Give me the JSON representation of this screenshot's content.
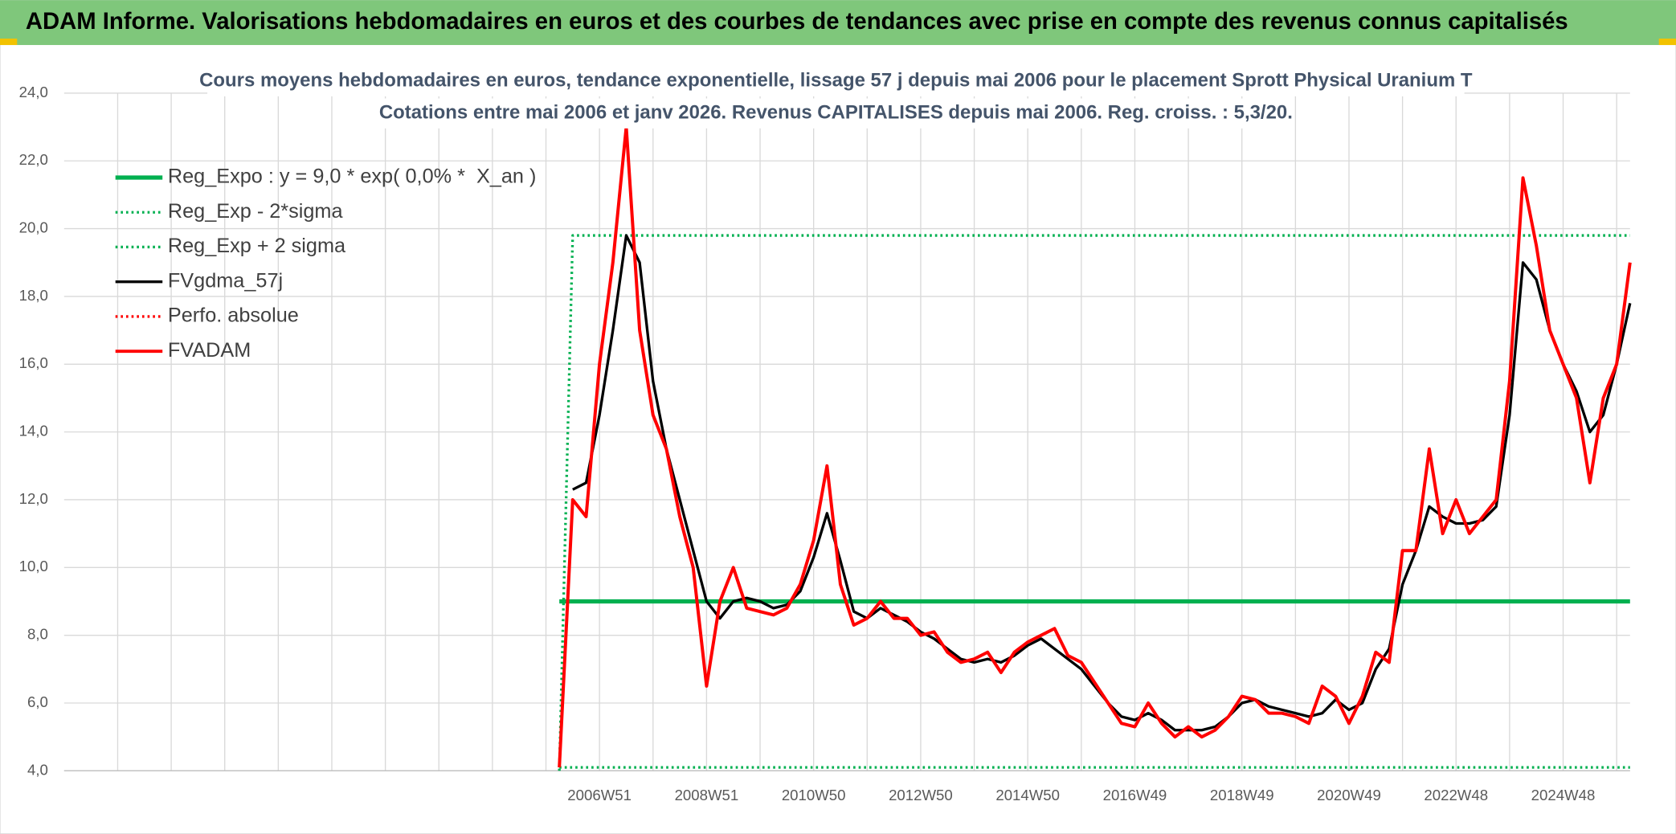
{
  "header": {
    "title": "ADAM Informe. Valorisations hebdomadaires en euros et des courbes de tendances avec prise en compte des revenus connus capitalisés"
  },
  "chart_data": {
    "type": "line",
    "title": "Cours moyens hebdomadaires en euros, tendance exponentielle, lissage 57 j depuis mai 2006 pour le placement Sprott Physical Uranium T",
    "subtitle": "Cotations entre mai 2006 et janv 2026. Revenus CAPITALISES depuis mai 2006. Reg. croiss. : 5,3/20.",
    "grid": true,
    "legend": "upper left",
    "ylim": [
      4,
      24
    ],
    "yticks": [
      {
        "value": 4,
        "label": "4,0"
      },
      {
        "value": 6,
        "label": "6,0"
      },
      {
        "value": 8,
        "label": "8,0"
      },
      {
        "value": 10,
        "label": "10,0"
      },
      {
        "value": 12,
        "label": "12,0"
      },
      {
        "value": 14,
        "label": "14,0"
      },
      {
        "value": 16,
        "label": "16,0"
      },
      {
        "value": 18,
        "label": "18,0"
      },
      {
        "value": 20,
        "label": "20,0"
      },
      {
        "value": 22,
        "label": "22,0"
      },
      {
        "value": 24,
        "label": "24,0"
      }
    ],
    "categories": [
      null,
      null,
      null,
      null,
      null,
      null,
      null,
      null,
      null,
      null,
      null,
      null,
      null,
      null,
      null,
      null,
      null,
      null,
      null,
      null,
      null,
      null,
      null,
      null,
      null,
      null,
      null,
      null,
      null,
      null,
      null,
      null,
      null,
      null,
      null,
      null,
      null,
      null,
      null,
      null,
      "2006W51",
      null,
      null,
      null,
      null,
      null,
      null,
      null,
      "2008W51",
      null,
      null,
      null,
      null,
      null,
      null,
      null,
      "2010W50",
      null,
      null,
      null,
      null,
      null,
      null,
      null,
      "2012W50",
      null,
      null,
      null,
      null,
      null,
      null,
      null,
      "2014W50",
      null,
      null,
      null,
      null,
      null,
      null,
      null,
      "2016W49",
      null,
      null,
      null,
      null,
      null,
      null,
      null,
      "2018W49",
      null,
      null,
      null,
      null,
      null,
      null,
      null,
      "2020W49",
      null,
      null,
      null,
      null,
      null,
      null,
      null,
      "2022W48",
      null,
      null,
      null,
      null,
      null,
      null,
      null,
      "2024W48",
      null,
      null,
      null,
      null,
      null
    ],
    "series": [
      {
        "name": "Reg_Expo : y = 9,0 * exp( 0,0% *  X_an )",
        "color": "#00b050",
        "line_style": "solid",
        "values": [
          null,
          null,
          null,
          null,
          null,
          null,
          null,
          null,
          null,
          null,
          null,
          null,
          null,
          null,
          null,
          null,
          null,
          null,
          null,
          null,
          null,
          null,
          null,
          null,
          null,
          null,
          null,
          null,
          null,
          null,
          null,
          null,
          null,
          null,
          null,
          null,
          null,
          9,
          9,
          9,
          9,
          9,
          9,
          9,
          9,
          9,
          9,
          9,
          9,
          9,
          9,
          9,
          9,
          9,
          9,
          9,
          9,
          9,
          9,
          9,
          9,
          9,
          9,
          9,
          9,
          9,
          9,
          9,
          9,
          9,
          9,
          9,
          9,
          9,
          9,
          9,
          9,
          9,
          9,
          9,
          9,
          9,
          9,
          9,
          9,
          9,
          9,
          9,
          9,
          9,
          9,
          9,
          9,
          9,
          9,
          9,
          9,
          9,
          9,
          9,
          9,
          9,
          9,
          9,
          9,
          9,
          9,
          9,
          9,
          9,
          9,
          9,
          9,
          9,
          9,
          9,
          9,
          9
        ]
      },
      {
        "name": "Reg_Exp - 2*sigma",
        "color": "#00b050",
        "line_style": "dotted",
        "values": [
          null,
          null,
          null,
          null,
          null,
          null,
          null,
          null,
          null,
          null,
          null,
          null,
          null,
          null,
          null,
          null,
          null,
          null,
          null,
          null,
          null,
          null,
          null,
          null,
          null,
          null,
          null,
          null,
          null,
          null,
          null,
          null,
          null,
          null,
          null,
          null,
          null,
          4.1,
          4.1,
          4.1,
          4.1,
          4.1,
          4.1,
          4.1,
          4.1,
          4.1,
          4.1,
          4.1,
          4.1,
          4.1,
          4.1,
          4.1,
          4.1,
          4.1,
          4.1,
          4.1,
          4.1,
          4.1,
          4.1,
          4.1,
          4.1,
          4.1,
          4.1,
          4.1,
          4.1,
          4.1,
          4.1,
          4.1,
          4.1,
          4.1,
          4.1,
          4.1,
          4.1,
          4.1,
          4.1,
          4.1,
          4.1,
          4.1,
          4.1,
          4.1,
          4.1,
          4.1,
          4.1,
          4.1,
          4.1,
          4.1,
          4.1,
          4.1,
          4.1,
          4.1,
          4.1,
          4.1,
          4.1,
          4.1,
          4.1,
          4.1,
          4.1,
          4.1,
          4.1,
          4.1,
          4.1,
          4.1,
          4.1,
          4.1,
          4.1,
          4.1,
          4.1,
          4.1,
          4.1,
          4.1,
          4.1,
          4.1,
          4.1,
          4.1,
          4.1,
          4.1,
          4.1,
          4.1
        ]
      },
      {
        "name": "Reg_Exp + 2 sigma",
        "color": "#00b050",
        "line_style": "dotted",
        "values": [
          null,
          null,
          null,
          null,
          null,
          null,
          null,
          null,
          null,
          null,
          null,
          null,
          null,
          null,
          null,
          null,
          null,
          null,
          null,
          null,
          null,
          null,
          null,
          null,
          null,
          null,
          null,
          null,
          null,
          null,
          null,
          null,
          null,
          null,
          null,
          null,
          null,
          4,
          19.8,
          19.8,
          19.8,
          19.8,
          19.8,
          19.8,
          19.8,
          19.8,
          19.8,
          19.8,
          19.8,
          19.8,
          19.8,
          19.8,
          19.8,
          19.8,
          19.8,
          19.8,
          19.8,
          19.8,
          19.8,
          19.8,
          19.8,
          19.8,
          19.8,
          19.8,
          19.8,
          19.8,
          19.8,
          19.8,
          19.8,
          19.8,
          19.8,
          19.8,
          19.8,
          19.8,
          19.8,
          19.8,
          19.8,
          19.8,
          19.8,
          19.8,
          19.8,
          19.8,
          19.8,
          19.8,
          19.8,
          19.8,
          19.8,
          19.8,
          19.8,
          19.8,
          19.8,
          19.8,
          19.8,
          19.8,
          19.8,
          19.8,
          19.8,
          19.8,
          19.8,
          19.8,
          19.8,
          19.8,
          19.8,
          19.8,
          19.8,
          19.8,
          19.8,
          19.8,
          19.8,
          19.8,
          19.8,
          19.8,
          19.8,
          19.8,
          19.8,
          19.8,
          19.8,
          19.8
        ]
      },
      {
        "name": "FVgdma_57j",
        "color": "#000000",
        "line_style": "solid",
        "values": [
          null,
          null,
          null,
          null,
          null,
          null,
          null,
          null,
          null,
          null,
          null,
          null,
          null,
          null,
          null,
          null,
          null,
          null,
          null,
          null,
          null,
          null,
          null,
          null,
          null,
          null,
          null,
          null,
          null,
          null,
          null,
          null,
          null,
          null,
          null,
          null,
          null,
          null,
          12.3,
          12.5,
          14.5,
          17,
          19.8,
          19,
          15.5,
          13.5,
          12,
          10.5,
          9,
          8.5,
          9,
          9.1,
          9,
          8.8,
          8.9,
          9.3,
          10.3,
          11.6,
          10.2,
          8.7,
          8.5,
          8.8,
          8.6,
          8.4,
          8.1,
          7.9,
          7.6,
          7.3,
          7.2,
          7.3,
          7.2,
          7.4,
          7.7,
          7.9,
          7.6,
          7.3,
          7,
          6.5,
          6,
          5.6,
          5.5,
          5.7,
          5.5,
          5.2,
          5.2,
          5.2,
          5.3,
          5.6,
          6,
          6.1,
          5.9,
          5.8,
          5.7,
          5.6,
          5.7,
          6.1,
          5.8,
          6,
          7,
          7.6,
          9.5,
          10.5,
          11.8,
          11.5,
          11.3,
          11.3,
          11.4,
          11.8,
          14.5,
          19,
          18.5,
          17,
          16,
          15.2,
          14,
          14.5,
          16,
          17.8
        ]
      },
      {
        "name": "Perfo. absolue",
        "color": "#ff0000",
        "line_style": "dotted",
        "values": [
          null,
          null,
          null,
          null,
          null,
          null,
          null,
          null,
          null,
          null,
          null,
          null,
          null,
          null,
          null,
          null,
          null,
          null,
          null,
          null,
          null,
          null,
          null,
          null,
          null,
          null,
          null,
          null,
          null,
          null,
          null,
          null,
          null,
          null,
          null,
          null,
          null,
          null,
          null,
          null,
          null,
          null,
          null,
          null,
          null,
          null,
          null,
          null,
          null,
          null,
          null,
          null,
          null,
          null,
          null,
          null,
          null,
          null,
          null,
          null,
          null,
          null,
          null,
          null,
          null,
          null,
          null,
          null,
          null,
          null,
          null,
          null,
          null,
          null,
          null,
          null,
          null,
          null,
          null,
          null,
          null,
          null,
          null,
          null,
          null,
          null,
          null,
          null,
          null,
          null,
          null,
          null,
          null,
          null,
          null,
          null,
          null,
          null,
          null,
          null,
          null,
          null,
          null,
          null,
          null,
          null,
          null,
          null,
          null,
          null,
          null,
          null,
          null,
          null,
          null,
          null,
          null,
          null
        ]
      },
      {
        "name": "FVADAM",
        "color": "#ff0000",
        "line_style": "solid",
        "values": [
          null,
          null,
          null,
          null,
          null,
          null,
          null,
          null,
          null,
          null,
          null,
          null,
          null,
          null,
          null,
          null,
          null,
          null,
          null,
          null,
          null,
          null,
          null,
          null,
          null,
          null,
          null,
          null,
          null,
          null,
          null,
          null,
          null,
          null,
          null,
          null,
          null,
          4.1,
          12,
          11.5,
          16,
          19,
          23,
          17,
          14.5,
          13.5,
          11.5,
          10,
          6.5,
          9,
          10,
          8.8,
          8.7,
          8.6,
          8.8,
          9.5,
          10.8,
          13,
          9.5,
          8.3,
          8.5,
          9,
          8.5,
          8.5,
          8,
          8.1,
          7.5,
          7.2,
          7.3,
          7.5,
          6.9,
          7.5,
          7.8,
          8,
          8.2,
          7.4,
          7.2,
          6.6,
          6,
          5.4,
          5.3,
          6,
          5.4,
          5,
          5.3,
          5,
          5.2,
          5.6,
          6.2,
          6.1,
          5.7,
          5.7,
          5.6,
          5.4,
          6.5,
          6.2,
          5.4,
          6.2,
          7.5,
          7.2,
          10.5,
          10.5,
          13.5,
          11,
          12,
          11,
          11.5,
          12,
          15.5,
          21.5,
          19.5,
          17,
          16,
          15,
          12.5,
          15,
          16,
          19
        ]
      }
    ]
  }
}
